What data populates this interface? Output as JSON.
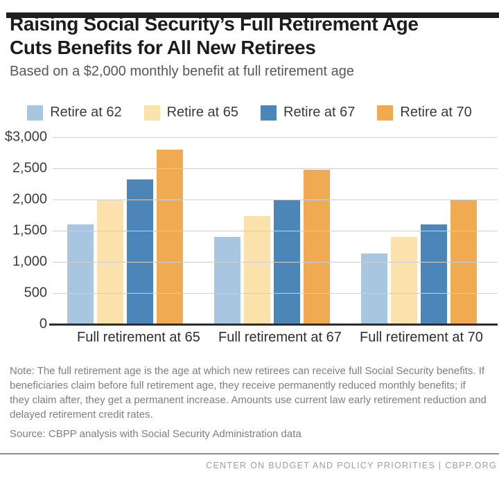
{
  "header": {
    "title": "Raising Social Security’s Full Retirement Age Cuts Benefits for All New Retirees",
    "subtitle": "Based on a $2,000 monthly benefit at full retirement age"
  },
  "chart_data": {
    "type": "bar",
    "title": "Raising Social Security’s Full Retirement Age Cuts Benefits for All New Retirees",
    "subtitle": "Based on a $2,000 monthly benefit at full retirement age",
    "categories": [
      "Full retirement at 65",
      "Full retirement at 67",
      "Full retirement at 70"
    ],
    "series": [
      {
        "name": "Retire at 62",
        "color": "#a9c6e1",
        "values": [
          1600,
          1400,
          1133
        ]
      },
      {
        "name": "Retire at 65",
        "color": "#fbe2ad",
        "values": [
          2000,
          1733,
          1400
        ]
      },
      {
        "name": "Retire at 67",
        "color": "#4c85b7",
        "values": [
          2320,
          2000,
          1600
        ]
      },
      {
        "name": "Retire at 70",
        "color": "#efaa52",
        "values": [
          2800,
          2480,
          2000
        ]
      }
    ],
    "xlabel": "",
    "ylabel": "",
    "ylim": [
      0,
      3000
    ],
    "y_ticks": [
      {
        "value": 3000,
        "label": "$3,000"
      },
      {
        "value": 2500,
        "label": "2,500"
      },
      {
        "value": 2000,
        "label": "2,000"
      },
      {
        "value": 1500,
        "label": "1,500"
      },
      {
        "value": 1000,
        "label": "1,000"
      },
      {
        "value": 500,
        "label": "500"
      },
      {
        "value": 0,
        "label": "0"
      }
    ],
    "grid": true,
    "legend_position": "top"
  },
  "note": "Note: The full retirement age is the age at which new retirees can receive full Social Security benefits. If beneficiaries claim before full retirement age, they receive permanently reduced monthly benefits; if they claim after, they get a permanent increase. Amounts use current law early retirement reduction and delayed retirement credit rates.",
  "source": "Source: CBPP analysis with Social Security Administration data",
  "footer": "CENTER ON BUDGET AND POLICY PRIORITIES | CBPP.ORG",
  "colors": {
    "accent_bar": "#1f1f1f",
    "gridline": "#cfcfcf",
    "axis_line": "#2b2b2b",
    "note_text": "#7e7e7e",
    "footer_text": "#9d9d9d"
  }
}
